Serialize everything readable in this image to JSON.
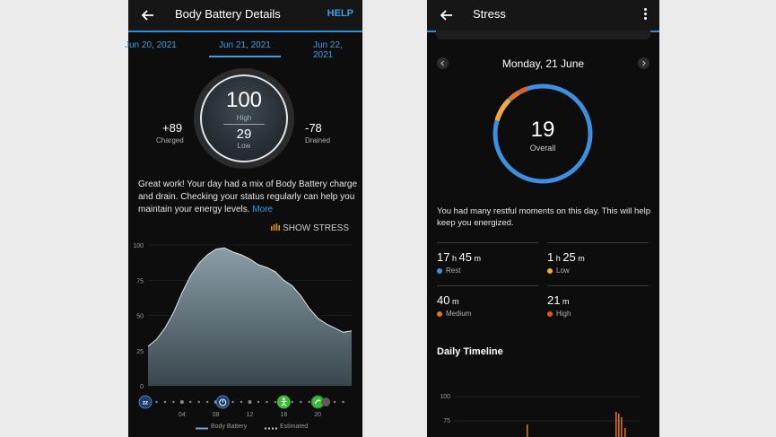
{
  "left": {
    "header": {
      "title": "Body Battery Details",
      "help": "HELP"
    },
    "dates": {
      "prev": "Jun 20, 2021",
      "current": "Jun 21, 2021",
      "next": "Jun 22, 2021"
    },
    "gauge": {
      "high_value": "100",
      "high_label": "High",
      "low_value": "29",
      "low_label": "Low"
    },
    "charged": {
      "value": "+89",
      "label": "Charged"
    },
    "drained": {
      "value": "-78",
      "label": "Drained"
    },
    "message": "Great work! Your day had a mix of Body Battery charge and drain. Checking your status regularly can help you maintain your energy levels.",
    "more_link": "More",
    "show_stress": "SHOW STRESS",
    "legend": {
      "body_battery": "Body Battery",
      "estimated": "Estimated"
    },
    "colors": {
      "accent": "#3aa0e6",
      "area_top": "#8a9ea8",
      "area_bottom": "#3a464d",
      "activity": "#3fb93a",
      "stress_bars": "#e58a1f"
    },
    "chart_data": {
      "type": "area",
      "y_ticks": [
        "100",
        "75",
        "50",
        "25",
        "0"
      ],
      "ylim": [
        0,
        100
      ],
      "xlim": [
        0,
        24
      ],
      "x_ticks": [
        {
          "x": 4,
          "label": "04"
        },
        {
          "x": 8,
          "label": "08"
        },
        {
          "x": 12,
          "label": "12"
        },
        {
          "x": 16,
          "label": "16"
        },
        {
          "x": 20,
          "label": "20"
        }
      ],
      "x": [
        0,
        1,
        2,
        3,
        4,
        5,
        6,
        7,
        8,
        9,
        10,
        11,
        12,
        13,
        14,
        15,
        16,
        17,
        18,
        19,
        20,
        21,
        22,
        23,
        24
      ],
      "values": [
        28,
        33,
        41,
        52,
        66,
        78,
        87,
        93,
        97,
        98,
        95,
        93,
        90,
        86,
        84,
        81,
        75,
        71,
        64,
        55,
        48,
        44,
        41,
        38,
        39
      ],
      "timeline_icons": [
        {
          "x": 0,
          "icon": "sleep-icon"
        },
        {
          "x": 8.8,
          "icon": "stopwatch-icon"
        },
        {
          "x": 16,
          "icon": "walking-icon"
        },
        {
          "x": 20,
          "icon": "activity-icon"
        }
      ]
    }
  },
  "right": {
    "header": {
      "title": "Stress"
    },
    "date": "Monday, 21 June",
    "overall": {
      "value": "19",
      "label": "Overall"
    },
    "message": "You had many restful moments on this day. This will help keep you energized.",
    "stats": [
      {
        "h": "17",
        "m": "45",
        "label": "Rest",
        "color": "#3d8fe0"
      },
      {
        "h": "1",
        "m": "25",
        "label": "Low",
        "color": "#f0a93c"
      },
      {
        "h": "",
        "m": "40",
        "label": "Medium",
        "color": "#e5761f"
      },
      {
        "h": "",
        "m": "21",
        "label": "High",
        "color": "#e05a1a"
      }
    ],
    "units": {
      "h": "h",
      "m": "m"
    },
    "daily_timeline": "Daily Timeline",
    "timeline_ticks": [
      "100",
      "75"
    ],
    "ring": {
      "rest_color": "#3d8fe0",
      "segments": [
        {
          "from": 0.795,
          "to": 0.875,
          "color": "#f0a93c"
        },
        {
          "from": 0.88,
          "to": 0.915,
          "color": "#e5761f"
        },
        {
          "from": 0.92,
          "to": 0.945,
          "color": "#e05a1a"
        }
      ]
    }
  }
}
